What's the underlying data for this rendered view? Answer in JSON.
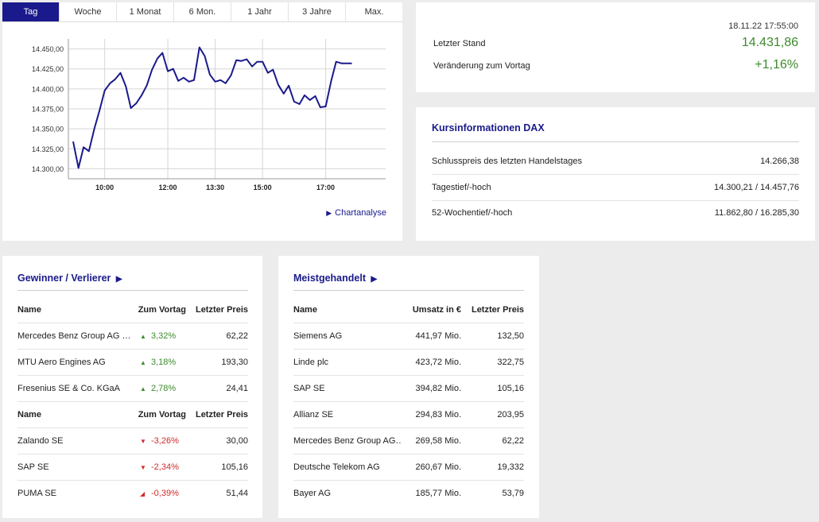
{
  "chart": {
    "tabs": [
      "Tag",
      "Woche",
      "1 Monat",
      "6 Mon.",
      "1 Jahr",
      "3 Jahre",
      "Max."
    ],
    "active_tab": 0,
    "link_label": "Chartanalyse",
    "colors": {
      "line": "#1a1a8c",
      "grid": "#d5d5d5",
      "tab_active": "#1a1a8c"
    }
  },
  "chart_data": {
    "type": "line",
    "title": "",
    "xlabel": "",
    "ylabel": "",
    "ylim": [
      14287.5,
      14462.5
    ],
    "xlim": [
      8.85,
      18.9
    ],
    "y_ticks": [
      "14.450,00",
      "14.425,00",
      "14.400,00",
      "14.375,00",
      "14.350,00",
      "14.325,00",
      "14.300,00"
    ],
    "y_tick_values": [
      14450,
      14425,
      14400,
      14375,
      14350,
      14325,
      14300
    ],
    "x_ticks": [
      "10:00",
      "12:00",
      "13:30",
      "15:00",
      "17:00"
    ],
    "x_tick_values": [
      10,
      12,
      13.5,
      15,
      17
    ],
    "grid": true,
    "series": [
      {
        "x": [
          9.0,
          9.17,
          9.33,
          9.5,
          9.67,
          9.83,
          10.0,
          10.17,
          10.33,
          10.5,
          10.67,
          10.83,
          11.0,
          11.17,
          11.33,
          11.5,
          11.67,
          11.83,
          12.0,
          12.17,
          12.33,
          12.5,
          12.67,
          12.83,
          13.0,
          13.17,
          13.33,
          13.5,
          13.67,
          13.83,
          14.0,
          14.17,
          14.33,
          14.5,
          14.67,
          14.83,
          15.0,
          15.17,
          15.33,
          15.5,
          15.67,
          15.83,
          16.0,
          16.17,
          16.33,
          16.5,
          16.67,
          16.83,
          17.0,
          17.17,
          17.33,
          17.5,
          17.67,
          17.83
        ],
        "y": [
          14334,
          14301,
          14327,
          14322,
          14350,
          14372,
          14398,
          14407,
          14412,
          14420,
          14403,
          14376,
          14382,
          14392,
          14404,
          14424,
          14438,
          14445,
          14422,
          14425,
          14410,
          14414,
          14409,
          14411,
          14452,
          14441,
          14418,
          14409,
          14411,
          14407,
          14417,
          14436,
          14435,
          14437,
          14428,
          14434,
          14434,
          14420,
          14424,
          14405,
          14394,
          14404,
          14384,
          14381,
          14392,
          14386,
          14391,
          14377,
          14378,
          14409,
          14434,
          14432,
          14432,
          14432
        ]
      }
    ]
  },
  "quote": {
    "timestamp": "18.11.22 17:55:00",
    "last_label": "Letzter Stand",
    "last_value": "14.431,86",
    "change_label": "Veränderung zum Vortag",
    "change_value": "+1,16%",
    "value_color": "#3d8b2c"
  },
  "info": {
    "title": "Kursinformationen DAX",
    "rows": [
      {
        "label": "Schlusspreis des letzten Handelstages",
        "value": "14.266,38"
      },
      {
        "label": "Tagestief/-hoch",
        "value": "14.300,21 / 14.457,76"
      },
      {
        "label": "52-Wochentief/-hoch",
        "value": "11.862,80 / 16.285,30"
      }
    ]
  },
  "gainers": {
    "title": "Gewinner / Verlierer",
    "headers": [
      "Name",
      "Zum Vortag",
      "Letzter Preis"
    ],
    "winners": [
      {
        "name": "Mercedes Benz Group AG …",
        "change": "3,32%",
        "price": "62,22"
      },
      {
        "name": "MTU Aero Engines AG",
        "change": "3,18%",
        "price": "193,30"
      },
      {
        "name": "Fresenius SE & Co. KGaA",
        "change": "2,78%",
        "price": "24,41"
      }
    ],
    "losers": [
      {
        "name": "Zalando SE",
        "change": "-3,26%",
        "price": "30,00"
      },
      {
        "name": "SAP SE",
        "change": "-2,34%",
        "price": "105,16"
      },
      {
        "name": "PUMA SE",
        "change": "-0,39%",
        "price": "51,44"
      }
    ],
    "up_icon": "triangle-up-icon",
    "down_icon": "triangle-down-icon",
    "up_color": "#3d8b2c",
    "down_color": "#d12b2b"
  },
  "traded": {
    "title": "Meistgehandelt",
    "headers": [
      "Name",
      "Umsatz in €",
      "Letzter Preis"
    ],
    "rows": [
      {
        "name": "Siemens AG",
        "turnover": "441,97 Mio.",
        "price": "132,50"
      },
      {
        "name": "Linde plc",
        "turnover": "423,72 Mio.",
        "price": "322,75"
      },
      {
        "name": "SAP SE",
        "turnover": "394,82 Mio.",
        "price": "105,16"
      },
      {
        "name": "Allianz SE",
        "turnover": "294,83 Mio.",
        "price": "203,95"
      },
      {
        "name": "Mercedes Benz Group AG…",
        "turnover": "269,58 Mio.",
        "price": "62,22"
      },
      {
        "name": "Deutsche Telekom AG",
        "turnover": "260,67 Mio.",
        "price": "19,332"
      },
      {
        "name": "Bayer AG",
        "turnover": "185,77 Mio.",
        "price": "53,79"
      }
    ]
  },
  "title_arrow": "▶"
}
